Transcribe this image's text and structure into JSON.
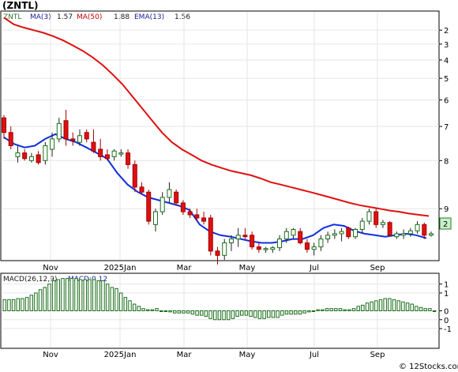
{
  "title": "(ZNTL)",
  "price_panel": {
    "legend": {
      "ticker": "ZNTL",
      "ma_short": "MA(3)",
      "ma_short_value": "1.57",
      "ma_long": "MA(50)",
      "ma_long_value": "1.88",
      "ema": "EMA(13)",
      "ema_value": "1.56"
    },
    "last_price_label": "2",
    "y_tick_labels": [
      "9",
      "8",
      "7",
      "6",
      "5",
      "4",
      "3",
      "2"
    ],
    "colors": {
      "ma50": "#e01010",
      "ema13": "#1030e0",
      "up_fill": "#ffffff",
      "up_stroke": "#1a6e1a",
      "down_fill": "#e01010",
      "down_stroke": "#a00000",
      "price_label_bg": "#c8f0c8"
    }
  },
  "macd_panel": {
    "label": "MACD(26,12,9)",
    "value_label": "MACD:0.12",
    "y_tick_labels": [
      "1",
      "1",
      "0",
      "0",
      "-1"
    ],
    "colors": {
      "bar_fill": "#ffffff",
      "bar_stroke": "#1a6e1a"
    }
  },
  "x_axis": {
    "tick_labels": [
      "Nov",
      "2025Jan",
      "Mar",
      "May",
      "Jul",
      "Sep"
    ]
  },
  "credit": "© 12Stocks.com",
  "chart_data": [
    {
      "type": "candlestick",
      "title": "(ZNTL)",
      "x_ticks": [
        "Nov",
        "2025Jan",
        "Mar",
        "May",
        "Jul",
        "Sep"
      ],
      "y_scale": "log",
      "ylim": [
        1.3,
        10.5
      ],
      "y_ticks": [
        2,
        3,
        4,
        5,
        6,
        7,
        8,
        9
      ],
      "candles": [
        {
          "o": 4.3,
          "h": 4.4,
          "l": 3.6,
          "c": 3.8
        },
        {
          "o": 3.8,
          "h": 4.0,
          "l": 3.3,
          "c": 3.4
        },
        {
          "o": 3.1,
          "h": 3.4,
          "l": 2.95,
          "c": 3.2
        },
        {
          "o": 3.2,
          "h": 3.3,
          "l": 3.0,
          "c": 3.05
        },
        {
          "o": 3.0,
          "h": 3.2,
          "l": 2.95,
          "c": 3.1
        },
        {
          "o": 3.15,
          "h": 3.25,
          "l": 2.9,
          "c": 2.95
        },
        {
          "o": 3.0,
          "h": 3.5,
          "l": 2.9,
          "c": 3.4
        },
        {
          "o": 3.3,
          "h": 3.8,
          "l": 3.1,
          "c": 3.6
        },
        {
          "o": 3.6,
          "h": 4.3,
          "l": 3.5,
          "c": 4.1
        },
        {
          "o": 4.2,
          "h": 4.6,
          "l": 3.4,
          "c": 3.6
        },
        {
          "o": 3.6,
          "h": 3.8,
          "l": 3.4,
          "c": 3.55
        },
        {
          "o": 3.5,
          "h": 3.9,
          "l": 3.4,
          "c": 3.7
        },
        {
          "o": 3.8,
          "h": 3.9,
          "l": 3.5,
          "c": 3.6
        },
        {
          "o": 3.5,
          "h": 3.9,
          "l": 3.2,
          "c": 3.25
        },
        {
          "o": 3.3,
          "h": 3.6,
          "l": 3.0,
          "c": 3.1
        },
        {
          "o": 3.15,
          "h": 3.3,
          "l": 3.0,
          "c": 3.05
        },
        {
          "o": 3.1,
          "h": 3.3,
          "l": 3.0,
          "c": 3.25
        },
        {
          "o": 3.2,
          "h": 3.3,
          "l": 3.1,
          "c": 3.2
        },
        {
          "o": 3.2,
          "h": 3.3,
          "l": 2.8,
          "c": 2.9
        },
        {
          "o": 2.9,
          "h": 3.0,
          "l": 2.3,
          "c": 2.4
        },
        {
          "o": 2.4,
          "h": 2.5,
          "l": 2.25,
          "c": 2.3
        },
        {
          "o": 2.3,
          "h": 2.35,
          "l": 1.75,
          "c": 1.8
        },
        {
          "o": 1.75,
          "h": 2.0,
          "l": 1.65,
          "c": 1.95
        },
        {
          "o": 1.95,
          "h": 2.3,
          "l": 1.9,
          "c": 2.2
        },
        {
          "o": 2.2,
          "h": 2.5,
          "l": 2.1,
          "c": 2.35
        },
        {
          "o": 2.3,
          "h": 2.35,
          "l": 2.05,
          "c": 2.1
        },
        {
          "o": 2.1,
          "h": 2.15,
          "l": 1.9,
          "c": 1.95
        },
        {
          "o": 1.95,
          "h": 2.0,
          "l": 1.85,
          "c": 1.9
        },
        {
          "o": 1.9,
          "h": 2.0,
          "l": 1.8,
          "c": 1.85
        },
        {
          "o": 1.85,
          "h": 1.95,
          "l": 1.75,
          "c": 1.8
        },
        {
          "o": 1.85,
          "h": 1.9,
          "l": 1.35,
          "c": 1.4
        },
        {
          "o": 1.4,
          "h": 1.45,
          "l": 1.25,
          "c": 1.35
        },
        {
          "o": 1.35,
          "h": 1.55,
          "l": 1.3,
          "c": 1.5
        },
        {
          "o": 1.5,
          "h": 1.6,
          "l": 1.4,
          "c": 1.55
        },
        {
          "o": 1.55,
          "h": 1.7,
          "l": 1.45,
          "c": 1.6
        },
        {
          "o": 1.6,
          "h": 1.7,
          "l": 1.55,
          "c": 1.58
        },
        {
          "o": 1.6,
          "h": 1.65,
          "l": 1.42,
          "c": 1.45
        },
        {
          "o": 1.45,
          "h": 1.5,
          "l": 1.38,
          "c": 1.42
        },
        {
          "o": 1.42,
          "h": 1.45,
          "l": 1.38,
          "c": 1.43
        },
        {
          "o": 1.42,
          "h": 1.46,
          "l": 1.38,
          "c": 1.44
        },
        {
          "o": 1.44,
          "h": 1.6,
          "l": 1.4,
          "c": 1.55
        },
        {
          "o": 1.55,
          "h": 1.7,
          "l": 1.5,
          "c": 1.65
        },
        {
          "o": 1.6,
          "h": 1.7,
          "l": 1.55,
          "c": 1.68
        },
        {
          "o": 1.65,
          "h": 1.7,
          "l": 1.48,
          "c": 1.5
        },
        {
          "o": 1.5,
          "h": 1.55,
          "l": 1.38,
          "c": 1.42
        },
        {
          "o": 1.42,
          "h": 1.5,
          "l": 1.35,
          "c": 1.45
        },
        {
          "o": 1.45,
          "h": 1.6,
          "l": 1.4,
          "c": 1.55
        },
        {
          "o": 1.55,
          "h": 1.65,
          "l": 1.5,
          "c": 1.6
        },
        {
          "o": 1.6,
          "h": 1.68,
          "l": 1.55,
          "c": 1.62
        },
        {
          "o": 1.62,
          "h": 1.7,
          "l": 1.52,
          "c": 1.65
        },
        {
          "o": 1.7,
          "h": 1.72,
          "l": 1.55,
          "c": 1.58
        },
        {
          "o": 1.58,
          "h": 1.7,
          "l": 1.55,
          "c": 1.68
        },
        {
          "o": 1.68,
          "h": 1.85,
          "l": 1.62,
          "c": 1.8
        },
        {
          "o": 1.8,
          "h": 2.0,
          "l": 1.75,
          "c": 1.95
        },
        {
          "o": 1.95,
          "h": 2.0,
          "l": 1.7,
          "c": 1.75
        },
        {
          "o": 1.75,
          "h": 1.82,
          "l": 1.7,
          "c": 1.78
        },
        {
          "o": 1.78,
          "h": 1.8,
          "l": 1.58,
          "c": 1.6
        },
        {
          "o": 1.58,
          "h": 1.65,
          "l": 1.55,
          "c": 1.62
        },
        {
          "o": 1.6,
          "h": 1.68,
          "l": 1.55,
          "c": 1.62
        },
        {
          "o": 1.62,
          "h": 1.7,
          "l": 1.58,
          "c": 1.66
        },
        {
          "o": 1.66,
          "h": 1.8,
          "l": 1.62,
          "c": 1.75
        },
        {
          "o": 1.75,
          "h": 1.78,
          "l": 1.55,
          "c": 1.6
        },
        {
          "o": 1.6,
          "h": 1.65,
          "l": 1.58,
          "c": 1.62
        }
      ],
      "series": [
        {
          "name": "MA(50)",
          "values": [
            10.0,
            9.45,
            9.2,
            9.0,
            8.8,
            8.55,
            8.25,
            7.9,
            7.55,
            7.15,
            6.7,
            6.2,
            5.7,
            5.15,
            4.65,
            4.2,
            3.8,
            3.5,
            3.3,
            3.15,
            3.0,
            2.9,
            2.82,
            2.75,
            2.7,
            2.65,
            2.58,
            2.5,
            2.45,
            2.4,
            2.35,
            2.3,
            2.25,
            2.2,
            2.15,
            2.1,
            2.06,
            2.03,
            2.0,
            1.97,
            1.95,
            1.92,
            1.9,
            1.88
          ]
        },
        {
          "name": "EMA(13)",
          "values": [
            3.65,
            3.45,
            3.35,
            3.4,
            3.6,
            3.75,
            3.6,
            3.5,
            3.35,
            3.2,
            3.05,
            2.7,
            2.45,
            2.3,
            2.2,
            2.15,
            2.1,
            2.05,
            1.98,
            1.75,
            1.65,
            1.6,
            1.58,
            1.55,
            1.52,
            1.5,
            1.5,
            1.52,
            1.55,
            1.55,
            1.6,
            1.7,
            1.75,
            1.73,
            1.66,
            1.62,
            1.6,
            1.58,
            1.6,
            1.62,
            1.6,
            1.56
          ]
        }
      ]
    },
    {
      "type": "bar",
      "title": "MACD(26,12,9)",
      "value_label": "MACD:0.12",
      "ylim": [
        -1.65,
        1.65
      ],
      "y_ticks": [
        1.2,
        0.8,
        0.0,
        -0.4,
        -0.8
      ],
      "y_tick_labels": [
        "1",
        "1",
        "0",
        "0",
        "-1"
      ],
      "values": [
        0.5,
        0.5,
        0.5,
        0.55,
        0.55,
        0.6,
        0.7,
        0.8,
        0.95,
        1.05,
        1.2,
        1.35,
        1.4,
        1.45,
        1.45,
        1.45,
        1.45,
        1.4,
        1.4,
        1.4,
        1.4,
        1.35,
        1.35,
        1.2,
        1.05,
        1.0,
        0.8,
        0.6,
        0.45,
        0.3,
        0.2,
        0.1,
        0.05,
        0.05,
        0.1,
        0.0,
        0.0,
        -0.05,
        -0.1,
        -0.1,
        -0.1,
        -0.1,
        -0.15,
        -0.2,
        -0.2,
        -0.25,
        -0.35,
        -0.4,
        -0.4,
        -0.4,
        -0.4,
        -0.35,
        -0.25,
        -0.2,
        -0.2,
        -0.25,
        -0.3,
        -0.35,
        -0.35,
        -0.3,
        -0.3,
        -0.3,
        -0.2,
        -0.15,
        -0.15,
        -0.15,
        -0.15,
        -0.1,
        -0.05,
        0.0,
        0.05,
        0.05,
        0.1,
        0.1,
        0.1,
        0.1,
        0.05,
        0.05,
        0.1,
        0.2,
        0.25,
        0.35,
        0.4,
        0.45,
        0.5,
        0.55,
        0.55,
        0.5,
        0.45,
        0.4,
        0.35,
        0.3,
        0.2,
        0.15,
        0.1,
        0.1,
        0.0
      ]
    }
  ]
}
